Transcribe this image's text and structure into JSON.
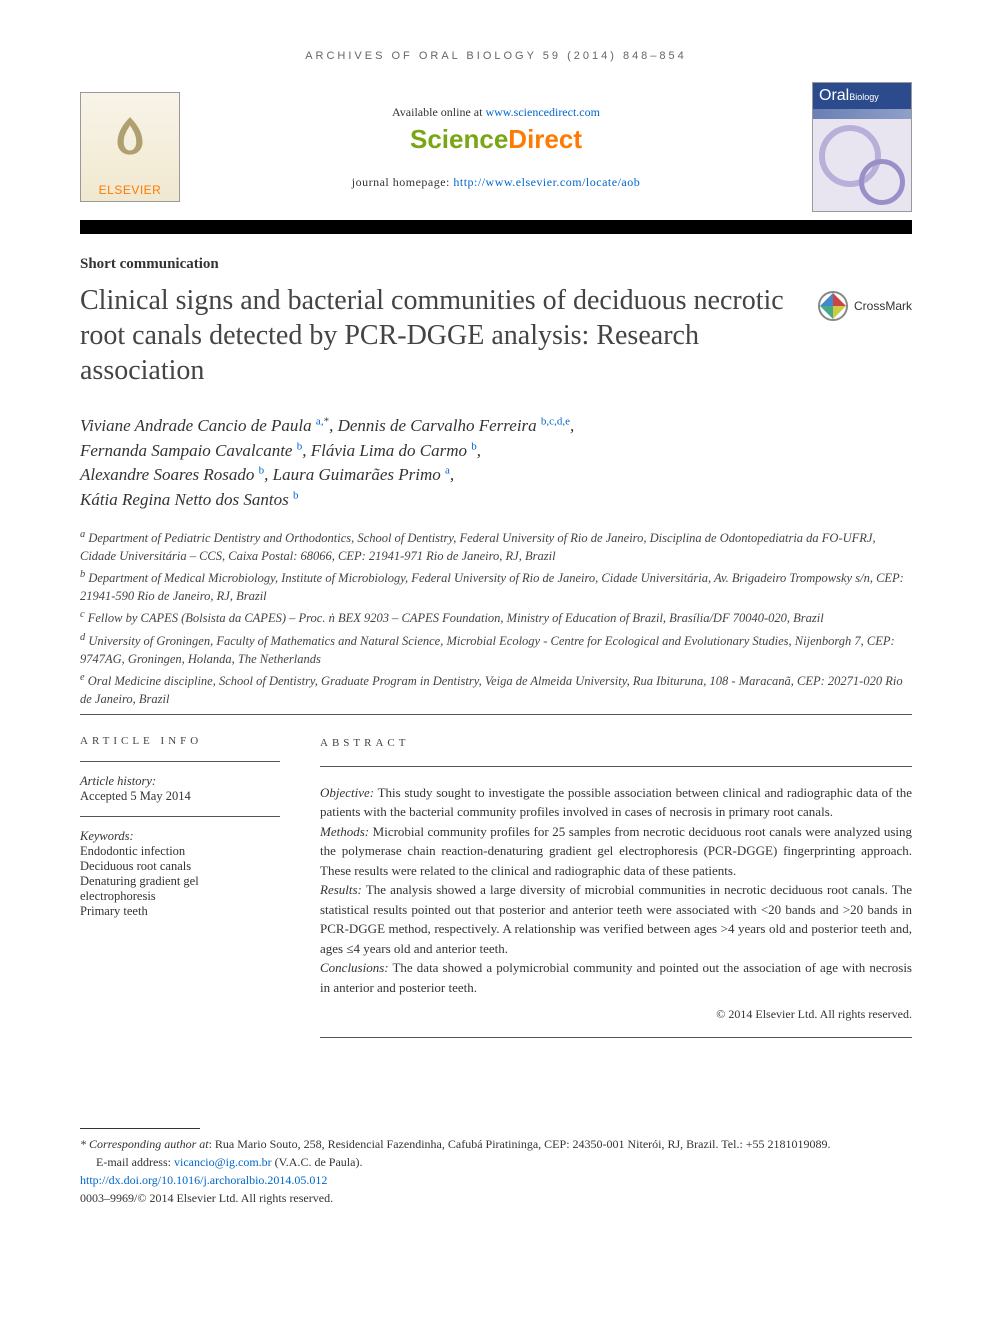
{
  "runningHead": "ARCHIVES OF ORAL BIOLOGY 59 (2014) 848–854",
  "masthead": {
    "elsevier": "ELSEVIER",
    "availableText": "Available online at ",
    "availableLink": "www.sciencedirect.com",
    "sdSci": "Science",
    "sdDir": "Direct",
    "homepagePrefix": "journal homepage: ",
    "homepageLink": "http://www.elsevier.com/locate/aob",
    "coverTitle1": "Oral",
    "coverTitle2": "Biology"
  },
  "crossmark": "CrossMark",
  "sectionLabel": "Short communication",
  "title": "Clinical signs and bacterial communities of deciduous necrotic root canals detected by PCR-DGGE analysis: Research association",
  "authors": [
    {
      "name": "Viviane Andrade Cancio de Paula",
      "affs": "a",
      "star": true,
      "comma": ","
    },
    {
      "name": "Dennis de Carvalho Ferreira",
      "affs": "b,c,d,e",
      "comma": ","
    },
    {
      "name": "Fernanda Sampaio Cavalcante",
      "affs": "b",
      "comma": ","
    },
    {
      "name": "Flávia Lima do Carmo",
      "affs": "b",
      "comma": ","
    },
    {
      "name": "Alexandre Soares Rosado",
      "affs": "b",
      "comma": ","
    },
    {
      "name": "Laura Guimarães Primo",
      "affs": "a",
      "comma": ","
    },
    {
      "name": "Kátia Regina Netto dos Santos",
      "affs": "b",
      "comma": ""
    }
  ],
  "affiliations": {
    "a": "Department of Pediatric Dentistry and Orthodontics, School of Dentistry, Federal University of Rio de Janeiro, Disciplina de Odontopediatria da FO-UFRJ, Cidade Universitária – CCS, Caixa Postal: 68066, CEP: 21941-971 Rio de Janeiro, RJ, Brazil",
    "b": "Department of Medical Microbiology, Institute of Microbiology, Federal University of Rio de Janeiro, Cidade Universitária, Av. Brigadeiro Trompowsky s/n, CEP: 21941-590 Rio de Janeiro, RJ, Brazil",
    "c": "Fellow by CAPES (Bolsista da CAPES) – Proc. ṅ BEX 9203 – CAPES Foundation, Ministry of Education of Brazil, Brasília/DF 70040-020, Brazil",
    "d": "University of Groningen, Faculty of Mathematics and Natural Science, Microbial Ecology - Centre for Ecological and Evolutionary Studies, Nijenborgh 7, CEP: 9747AG, Groningen, Holanda, The Netherlands",
    "e": "Oral Medicine discipline, School of Dentistry, Graduate Program in Dentistry, Veiga de Almeida University, Rua Ibituruna, 108 - Maracanã, CEP: 20271-020 Rio de Janeiro, Brazil"
  },
  "articleInfo": {
    "head": "ARTICLE INFO",
    "historyLabel": "Article history:",
    "historyValue": "Accepted 5 May 2014",
    "kwLabel": "Keywords:",
    "keywords": [
      "Endodontic infection",
      "Deciduous root canals",
      "Denaturing gradient gel",
      "electrophoresis",
      "Primary teeth"
    ]
  },
  "abstract": {
    "head": "ABSTRACT",
    "objectiveLabel": "Objective:",
    "objective": " This study sought to investigate the possible association between clinical and radiographic data of the patients with the bacterial community profiles involved in cases of necrosis in primary root canals.",
    "methodsLabel": "Methods:",
    "methods": " Microbial community profiles for 25 samples from necrotic deciduous root canals were analyzed using the polymerase chain reaction-denaturing gradient gel electrophoresis (PCR-DGGE) fingerprinting approach. These results were related to the clinical and radiographic data of these patients.",
    "resultsLabel": "Results:",
    "results": " The analysis showed a large diversity of microbial communities in necrotic deciduous root canals. The statistical results pointed out that posterior and anterior teeth were associated with <20 bands and >20 bands in PCR-DGGE method, respectively. A relationship was verified between ages >4 years old and posterior teeth and, ages ≤4 years old and anterior teeth.",
    "conclusionsLabel": "Conclusions:",
    "conclusions": " The data showed a polymicrobial community and pointed out the association of age with necrosis in anterior and posterior teeth.",
    "copyright": "© 2014 Elsevier Ltd. All rights reserved."
  },
  "footer": {
    "corrLabel": "* Corresponding author at",
    "corrText": ": Rua Mario Souto, 258, Residencial Fazendinha, Cafubá Piratininga, CEP: 24350-001 Niterói, RJ, Brazil. Tel.: +55 2181019089.",
    "emailLabel": "E-mail address: ",
    "email": "vicancio@ig.com.br",
    "emailSuffix": " (V.A.C. de Paula).",
    "doi": "http://dx.doi.org/10.1016/j.archoralbio.2014.05.012",
    "issn": "0003–9969/© 2014 Elsevier Ltd. All rights reserved."
  }
}
